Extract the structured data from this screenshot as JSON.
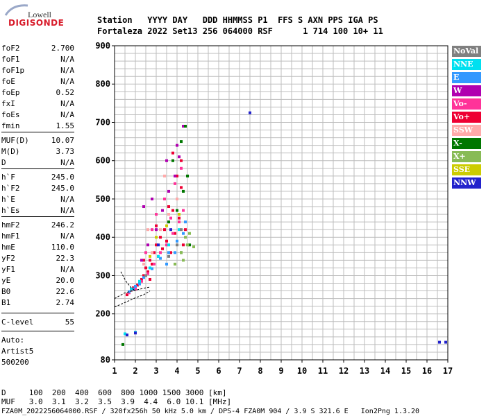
{
  "logo": {
    "top": "Lowell",
    "main": "DIGISONDE"
  },
  "header": {
    "row1": "Station   YYYY DAY   DDD HHMMSS P1  FFS S AXN PPS IGA PS",
    "row2": "Fortaleza 2022 Set13 256 064000 RSF      1 714 100 10+ 11"
  },
  "params": [
    {
      "name": "foF2",
      "value": "2.700"
    },
    {
      "name": "foF1",
      "value": "N/A"
    },
    {
      "name": "foF1p",
      "value": "N/A"
    },
    {
      "name": "foE",
      "value": "N/A"
    },
    {
      "name": "foEp",
      "value": "0.52"
    },
    {
      "name": "fxI",
      "value": "N/A"
    },
    {
      "name": "foEs",
      "value": "N/A"
    },
    {
      "name": "fmin",
      "value": "1.55"
    },
    {
      "name": "MUF(D)",
      "value": "10.07"
    },
    {
      "name": "M(D)",
      "value": "3.73"
    },
    {
      "name": "D",
      "value": "N/A"
    },
    {
      "name": "h`F",
      "value": "245.0"
    },
    {
      "name": "h`F2",
      "value": "245.0"
    },
    {
      "name": "h`E",
      "value": "N/A"
    },
    {
      "name": "h`Es",
      "value": "N/A"
    },
    {
      "name": "hmF2",
      "value": "246.2"
    },
    {
      "name": "hmF1",
      "value": "N/A"
    },
    {
      "name": "hmE",
      "value": "110.0"
    },
    {
      "name": "yF2",
      "value": "22.3"
    },
    {
      "name": "yF1",
      "value": "N/A"
    },
    {
      "name": "yE",
      "value": "20.0"
    },
    {
      "name": "B0",
      "value": "22.6"
    },
    {
      "name": "B1",
      "value": "2.74"
    },
    {
      "name": "C-level",
      "value": "55"
    }
  ],
  "auto": [
    "Auto:",
    "Artist5",
    "500200"
  ],
  "legend": [
    {
      "label": "NoVal",
      "color": "#808080"
    },
    {
      "label": "NNE",
      "color": "#00e0f0"
    },
    {
      "label": "E",
      "color": "#3399ff"
    },
    {
      "label": "W",
      "color": "#b000b0"
    },
    {
      "label": "Vo-",
      "color": "#ff3399"
    },
    {
      "label": "Vo+",
      "color": "#ee0033"
    },
    {
      "label": "SSW",
      "color": "#ffaaaa"
    },
    {
      "label": "X-",
      "color": "#007700"
    },
    {
      "label": "X+",
      "color": "#88bb55"
    },
    {
      "label": "SSE",
      "color": "#cccc00"
    },
    {
      "label": "NNW",
      "color": "#2222cc"
    }
  ],
  "footer": {
    "row1": "D     100  200  400  600  800 1000 1500 3000 [km]",
    "row2": "MUF   3.0  3.1  3.2  3.5  3.9  4.4  6.0 10.1 [MHz]",
    "row3": "FZA0M_2022256064000.RSF / 320fx256h 50 kHz 5.0 km / DPS-4 FZA0M 904 / 3.9 S 321.6 E   Ion2Png 1.3.20"
  },
  "chart_data": {
    "type": "scatter",
    "xlim": [
      1,
      17
    ],
    "ylim": [
      80,
      900
    ],
    "xticks": [
      1,
      2,
      3,
      4,
      5,
      6,
      7,
      8,
      9,
      10,
      11,
      12,
      13,
      14,
      15,
      16,
      17
    ],
    "yticks": [
      80,
      200,
      300,
      400,
      500,
      600,
      700,
      800,
      900
    ],
    "grid": true,
    "legend_position": "right",
    "series": [
      {
        "name": "Vo+",
        "color": "#ee0033",
        "points": [
          [
            1.6,
            250
          ],
          [
            1.8,
            262
          ],
          [
            2.0,
            270
          ],
          [
            2.2,
            280
          ],
          [
            2.4,
            300
          ],
          [
            2.5,
            320
          ],
          [
            2.7,
            340
          ],
          [
            2.9,
            360
          ],
          [
            3.0,
            380
          ],
          [
            3.2,
            400
          ],
          [
            3.4,
            420
          ],
          [
            3.6,
            440
          ],
          [
            3.8,
            470
          ],
          [
            4.0,
            500
          ],
          [
            4.2,
            530
          ],
          [
            2.6,
            310
          ],
          [
            2.8,
            330
          ],
          [
            3.1,
            350
          ],
          [
            3.3,
            370
          ],
          [
            3.5,
            390
          ],
          [
            3.7,
            360
          ],
          [
            3.9,
            410
          ],
          [
            4.1,
            450
          ],
          [
            4.3,
            380
          ],
          [
            4.4,
            420
          ],
          [
            2.3,
            290
          ],
          [
            2.1,
            275
          ],
          [
            1.9,
            268
          ],
          [
            3.0,
            430
          ],
          [
            3.6,
            480
          ],
          [
            4.0,
            560
          ],
          [
            4.2,
            600
          ],
          [
            3.8,
            620
          ],
          [
            2.4,
            340
          ],
          [
            2.7,
            290
          ]
        ]
      },
      {
        "name": "Vo-",
        "color": "#ff3399",
        "points": [
          [
            1.7,
            255
          ],
          [
            2.0,
            265
          ],
          [
            2.3,
            285
          ],
          [
            2.6,
            305
          ],
          [
            2.9,
            330
          ],
          [
            3.2,
            360
          ],
          [
            3.5,
            380
          ],
          [
            3.8,
            410
          ],
          [
            4.1,
            440
          ],
          [
            4.3,
            470
          ],
          [
            3.0,
            460
          ],
          [
            2.8,
            420
          ],
          [
            3.4,
            500
          ],
          [
            3.9,
            540
          ],
          [
            4.2,
            580
          ],
          [
            2.5,
            360
          ],
          [
            3.7,
            450
          ]
        ]
      },
      {
        "name": "E",
        "color": "#3399ff",
        "points": [
          [
            1.7,
            258
          ],
          [
            2.0,
            272
          ],
          [
            2.4,
            295
          ],
          [
            2.8,
            318
          ],
          [
            3.2,
            345
          ],
          [
            3.6,
            360
          ],
          [
            4.0,
            390
          ],
          [
            4.3,
            410
          ],
          [
            3.9,
            360
          ],
          [
            4.4,
            440
          ],
          [
            3.5,
            330
          ],
          [
            2.2,
            278
          ],
          [
            1.9,
            265
          ]
        ]
      },
      {
        "name": "W",
        "color": "#b000b0",
        "points": [
          [
            2.3,
            340
          ],
          [
            2.6,
            380
          ],
          [
            3.0,
            420
          ],
          [
            3.3,
            470
          ],
          [
            3.6,
            520
          ],
          [
            3.9,
            560
          ],
          [
            4.1,
            610
          ],
          [
            4.3,
            690
          ],
          [
            2.8,
            500
          ],
          [
            3.5,
            600
          ],
          [
            2.4,
            480
          ],
          [
            4.0,
            640
          ]
        ]
      },
      {
        "name": "NNE",
        "color": "#00e0f0",
        "points": [
          [
            1.8,
            265
          ],
          [
            2.2,
            285
          ],
          [
            2.7,
            320
          ],
          [
            3.1,
            350
          ],
          [
            3.6,
            380
          ],
          [
            4.1,
            420
          ],
          [
            1.5,
            148
          ],
          [
            2.0,
            152
          ]
        ]
      },
      {
        "name": "X-",
        "color": "#007700",
        "points": [
          [
            3.6,
            440
          ],
          [
            4.0,
            470
          ],
          [
            4.3,
            520
          ],
          [
            4.5,
            560
          ],
          [
            4.2,
            650
          ],
          [
            4.4,
            690
          ],
          [
            3.8,
            600
          ],
          [
            4.6,
            380
          ],
          [
            4.2,
            360
          ],
          [
            1.4,
            120
          ]
        ]
      },
      {
        "name": "X+",
        "color": "#88bb55",
        "points": [
          [
            4.2,
            360
          ],
          [
            4.5,
            380
          ],
          [
            4.8,
            375
          ],
          [
            4.4,
            400
          ],
          [
            4.6,
            410
          ],
          [
            3.9,
            330
          ],
          [
            4.3,
            340
          ]
        ]
      },
      {
        "name": "SSW",
        "color": "#ffaaaa",
        "points": [
          [
            2.4,
            330
          ],
          [
            2.8,
            360
          ],
          [
            3.2,
            420
          ],
          [
            3.6,
            460
          ],
          [
            4.0,
            500
          ],
          [
            2.6,
            420
          ],
          [
            3.4,
            560
          ]
        ]
      },
      {
        "name": "SSE",
        "color": "#cccc00",
        "points": [
          [
            3.0,
            400
          ],
          [
            3.5,
            430
          ],
          [
            4.1,
            460
          ],
          [
            2.7,
            350
          ]
        ]
      },
      {
        "name": "NNW",
        "color": "#2222cc",
        "points": [
          [
            1.6,
            145
          ],
          [
            2.0,
            150
          ],
          [
            7.5,
            725
          ],
          [
            16.6,
            126
          ],
          [
            16.9,
            126
          ],
          [
            3.1,
            380
          ],
          [
            3.7,
            420
          ]
        ]
      },
      {
        "name": "NoVal",
        "color": "#808080",
        "points": [
          [
            4.0,
            380
          ],
          [
            4.2,
            420
          ],
          [
            3.6,
            350
          ],
          [
            2.5,
            300
          ]
        ]
      }
    ],
    "lines": [
      {
        "points": [
          [
            1.0,
            218
          ],
          [
            1.6,
            232
          ],
          [
            2.0,
            242
          ],
          [
            2.4,
            250
          ],
          [
            2.7,
            260
          ]
        ]
      },
      {
        "points": [
          [
            1.0,
            240
          ],
          [
            1.5,
            255
          ],
          [
            2.0,
            262
          ],
          [
            2.5,
            268
          ],
          [
            2.7,
            270
          ]
        ]
      },
      {
        "points": [
          [
            1.3,
            310
          ],
          [
            1.55,
            285
          ],
          [
            1.8,
            268
          ],
          [
            2.0,
            260
          ]
        ]
      }
    ]
  }
}
